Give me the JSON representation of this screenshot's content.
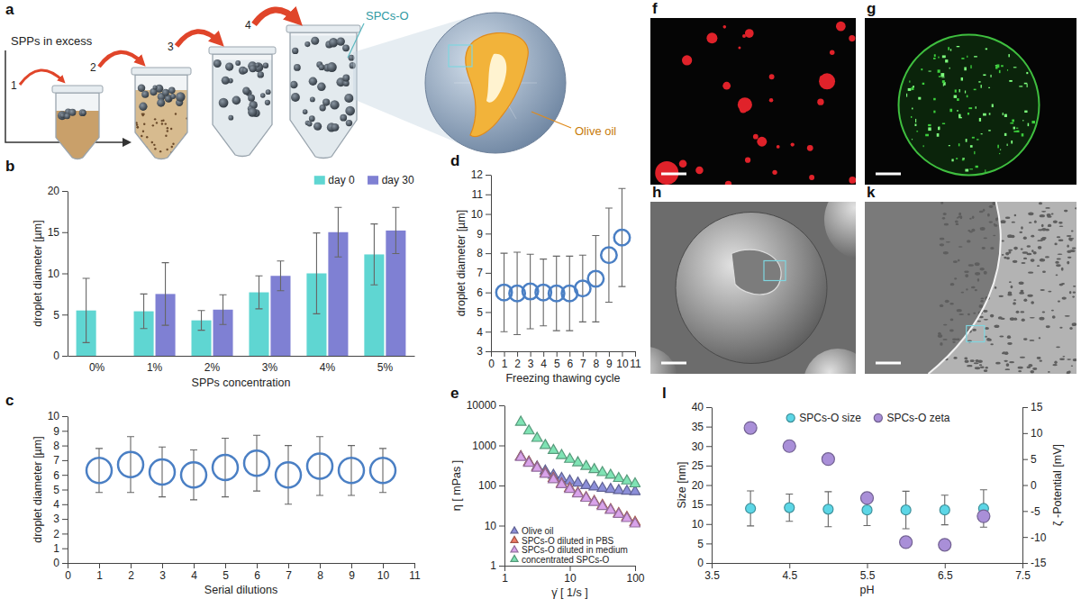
{
  "chart_data": [
    {
      "panel": "b",
      "type": "bar",
      "categories": [
        "0%",
        "1%",
        "2%",
        "3%",
        "4%",
        "5%"
      ],
      "series": [
        {
          "name": "day 0",
          "color": "#5fd6d2",
          "values": [
            5.5,
            5.4,
            4.3,
            7.7,
            10.0,
            12.3
          ],
          "errors": [
            3.9,
            2.1,
            1.2,
            2.0,
            4.9,
            3.7
          ]
        },
        {
          "name": "day 30",
          "color": "#7f80d3",
          "values": [
            null,
            7.5,
            5.6,
            9.7,
            15.0,
            15.2
          ],
          "errors": [
            null,
            3.8,
            1.8,
            1.8,
            3.0,
            2.8
          ]
        }
      ],
      "xlabel": "SPPs concentration",
      "ylabel": "droplet diameter [µm]",
      "ylim": [
        0,
        20
      ],
      "yticks": [
        0,
        5,
        10,
        15,
        20
      ],
      "legend": "upper right",
      "grid": false
    },
    {
      "panel": "c",
      "type": "scatter",
      "marker": "ring",
      "color": "#4a7fc4",
      "x": [
        1,
        2,
        3,
        4,
        5,
        6,
        7,
        8,
        9,
        10
      ],
      "values": [
        6.3,
        6.7,
        6.2,
        6.0,
        6.5,
        6.8,
        6.0,
        6.6,
        6.3,
        6.3
      ],
      "errors": [
        1.5,
        1.9,
        1.7,
        1.7,
        2.0,
        1.9,
        2.0,
        2.0,
        1.7,
        1.5
      ],
      "xlabel": "Serial dilutions",
      "ylabel": "droplet diameter [µm]",
      "xlim": [
        0,
        11
      ],
      "xticks": [
        0,
        1,
        2,
        3,
        4,
        5,
        6,
        7,
        8,
        9,
        10,
        11
      ],
      "ylim": [
        0,
        10
      ],
      "yticks": [
        0,
        1,
        2,
        3,
        4,
        5,
        6,
        7,
        8,
        9,
        10
      ],
      "grid": false
    },
    {
      "panel": "d",
      "type": "scatter",
      "marker": "ring",
      "color": "#4a7fc4",
      "x": [
        1,
        2,
        3,
        4,
        5,
        6,
        7,
        8,
        9,
        10
      ],
      "values": [
        6.0,
        5.95,
        6.05,
        6.0,
        5.95,
        5.95,
        6.2,
        6.7,
        7.9,
        8.8
      ],
      "errors": [
        2.0,
        2.1,
        1.9,
        1.7,
        1.9,
        1.9,
        1.7,
        2.2,
        2.4,
        2.5
      ],
      "xlabel": "Freezing thawing cycle",
      "ylabel": "droplet diameter [µm]",
      "xlim": [
        0,
        11
      ],
      "xticks": [
        0,
        1,
        2,
        3,
        4,
        5,
        6,
        7,
        8,
        9,
        10,
        11
      ],
      "ylim": [
        3,
        12
      ],
      "yticks": [
        3,
        4,
        5,
        6,
        7,
        8,
        9,
        10,
        11,
        12
      ],
      "grid": false
    },
    {
      "panel": "e",
      "type": "scatter",
      "marker": "triangle",
      "log": true,
      "x": [
        1.78,
        2.37,
        3.16,
        4.22,
        5.62,
        7.5,
        10,
        13.3,
        17.8,
        23.7,
        31.6,
        42.2,
        56.2,
        75,
        100
      ],
      "series": [
        {
          "name": "Olive oil",
          "color": "#8c8fd9",
          "values": [
            520,
            380,
            290,
            230,
            180,
            150,
            130,
            115,
            100,
            92,
            85,
            80,
            75,
            72,
            70
          ]
        },
        {
          "name": "SPCs-O diluted in PBS",
          "color": "#f27c68",
          "values": [
            520,
            380,
            280,
            200,
            150,
            110,
            85,
            65,
            50,
            40,
            32,
            25,
            20,
            16,
            12
          ]
        },
        {
          "name": "SPCs-O diluted in medium",
          "color": "#d9a3ea",
          "values": [
            500,
            360,
            270,
            190,
            140,
            105,
            80,
            62,
            48,
            38,
            30,
            24,
            19,
            15,
            11
          ]
        },
        {
          "name": "concentrated  SPCs-O",
          "color": "#7fe3b4",
          "values": [
            3800,
            2300,
            1500,
            1000,
            750,
            560,
            450,
            370,
            300,
            250,
            210,
            180,
            150,
            130,
            110
          ]
        }
      ],
      "xlabel": "γ̇ [ 1/s ]",
      "ylabel": "η [ mPas ]",
      "xlim": [
        1,
        100
      ],
      "xticks": [
        1,
        10,
        100
      ],
      "ylim": [
        1,
        10000
      ],
      "yticks": [
        1,
        10,
        100,
        1000,
        10000
      ],
      "legend": "lower left",
      "grid": false
    },
    {
      "panel": "l",
      "type": "scatter",
      "marker": "circle",
      "x": [
        4,
        4.5,
        5,
        5.5,
        6,
        6.5,
        7
      ],
      "series": [
        {
          "name": "SPCs-O size",
          "color": "#5cd6e6",
          "values": [
            14,
            14.2,
            13.8,
            13.6,
            13.6,
            13.6,
            14
          ],
          "errors": [
            4.5,
            3.5,
            4.5,
            4.0,
            4.8,
            3.8,
            4.8
          ]
        },
        {
          "name": "SPCs-O zeta",
          "color": "#a98fd8",
          "axis": "y2",
          "values": [
            11,
            7.5,
            5,
            -2.5,
            -11,
            -11.5,
            -6
          ]
        }
      ],
      "xlabel": "pH",
      "ylabel": "Size [nm]",
      "y2label": "ζ -Potential [mV]",
      "xlim": [
        3.5,
        7.5
      ],
      "xticks": [
        3.5,
        4.5,
        5.5,
        6.5,
        7.5
      ],
      "ylim": [
        0,
        40
      ],
      "yticks": [
        0,
        5,
        10,
        15,
        20,
        25,
        30,
        35,
        40
      ],
      "y2lim": [
        -15,
        15
      ],
      "y2ticks": [
        -15,
        -10,
        -5,
        0,
        5,
        10,
        15
      ],
      "legend": "upper center",
      "grid": false
    }
  ],
  "illustrations": [
    {
      "panel": "a",
      "texts": {
        "excess": "SPPs in excess",
        "steps": [
          "1",
          "2",
          "3",
          "4"
        ],
        "product": "SPCs-O",
        "core": "Olive oil"
      }
    },
    {
      "panel": "f"
    },
    {
      "panel": "g"
    },
    {
      "panel": "h"
    },
    {
      "panel": "k"
    }
  ]
}
